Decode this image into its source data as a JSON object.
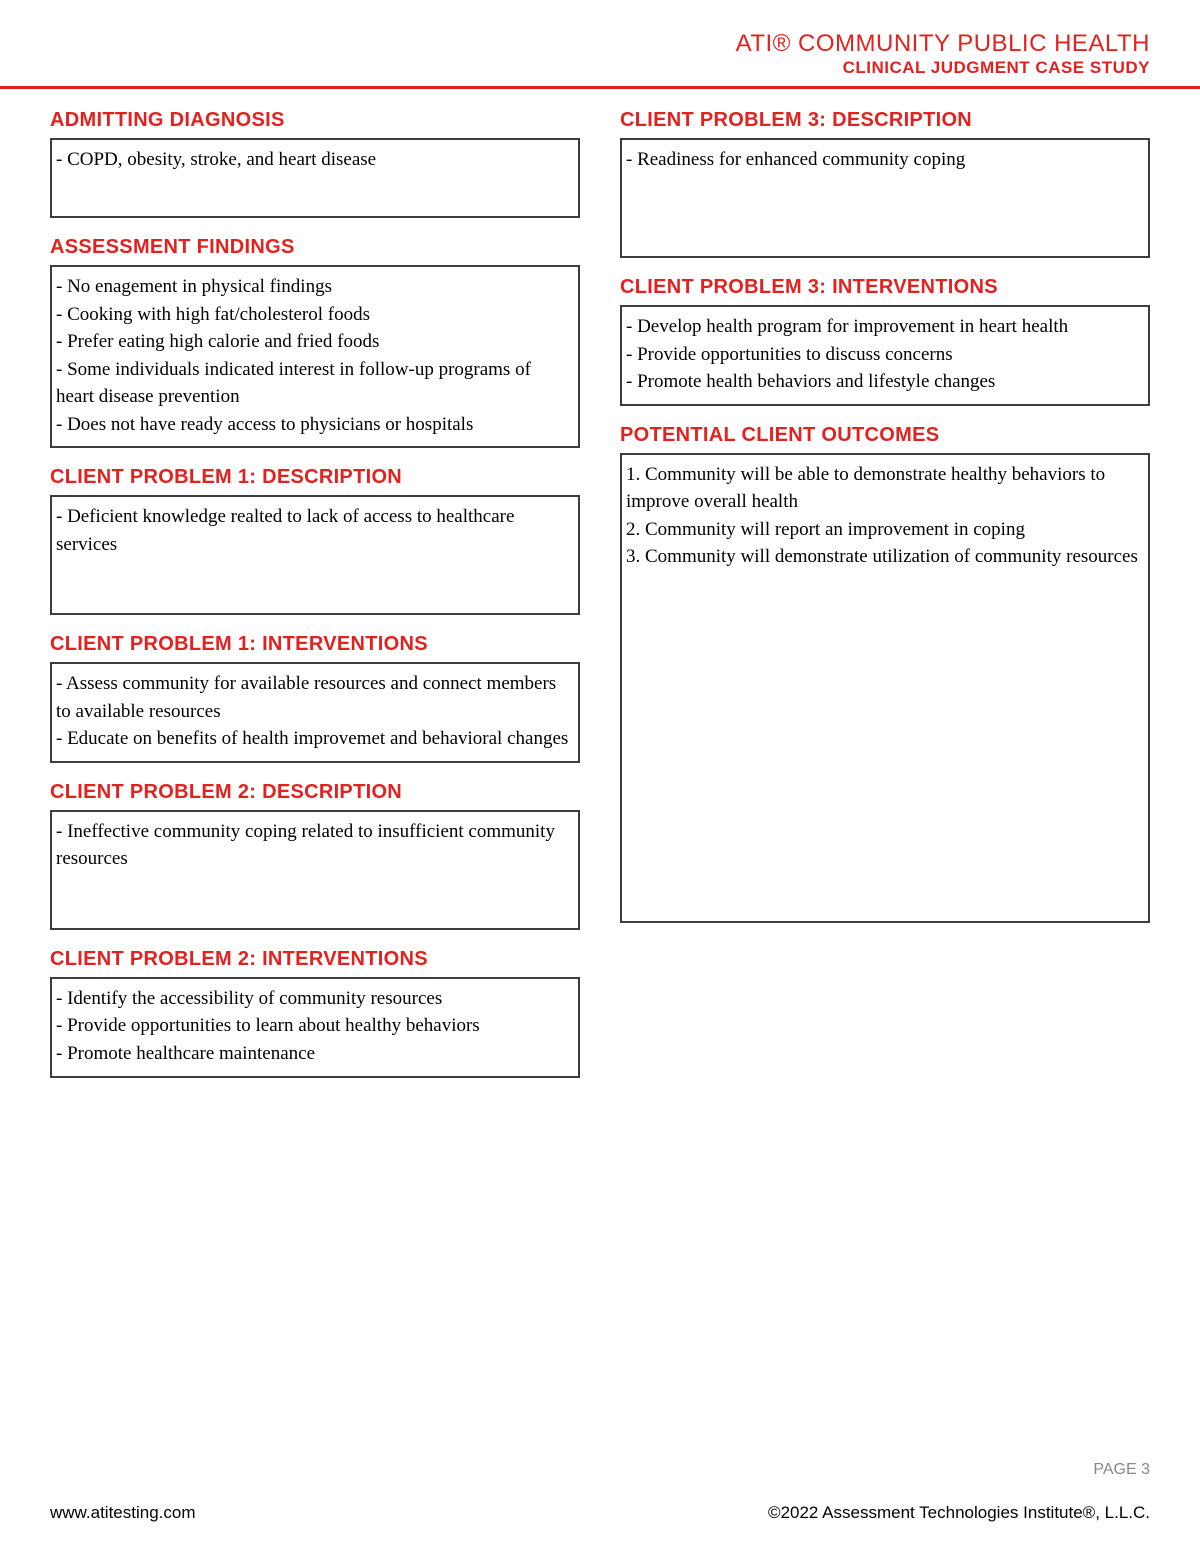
{
  "colors": {
    "accent": "#e2221f",
    "border": "#3d3d3d",
    "text": "#000000",
    "muted": "#888888",
    "background": "#ffffff"
  },
  "header": {
    "title": "ATI® COMMUNITY PUBLIC HEALTH",
    "subtitle": "CLINICAL JUDGMENT CASE STUDY"
  },
  "left": {
    "admitting_diagnosis": {
      "heading": "ADMITTING DIAGNOSIS",
      "lines": [
        "- COPD, obesity, stroke, and heart disease"
      ]
    },
    "assessment_findings": {
      "heading": "ASSESSMENT FINDINGS",
      "lines": [
        "- No enagement in physical findings",
        "- Cooking with high fat/cholesterol foods",
        "- Prefer eating high calorie and fried foods",
        "- Some individuals indicated interest in follow-up programs of heart disease prevention",
        "- Does not have ready access to physicians or hospitals"
      ]
    },
    "problem1_desc": {
      "heading": "CLIENT PROBLEM 1: DESCRIPTION",
      "lines": [
        "- Deficient knowledge realted to lack of access to healthcare services"
      ]
    },
    "problem1_int": {
      "heading": "CLIENT PROBLEM 1: INTERVENTIONS",
      "lines": [
        "- Assess community for available resources and connect members to available resources",
        "- Educate on benefits of health improvemet and behavioral changes"
      ]
    },
    "problem2_desc": {
      "heading": "CLIENT PROBLEM 2: DESCRIPTION",
      "lines": [
        "- Ineffective community coping related to insufficient community resources"
      ]
    },
    "problem2_int": {
      "heading": "CLIENT PROBLEM 2: INTERVENTIONS",
      "lines": [
        "- Identify the accessibility of community resources",
        "- Provide opportunities to learn about healthy behaviors",
        "- Promote healthcare maintenance"
      ]
    }
  },
  "right": {
    "problem3_desc": {
      "heading": "CLIENT PROBLEM 3: DESCRIPTION",
      "lines": [
        "- Readiness for enhanced community coping"
      ]
    },
    "problem3_int": {
      "heading": "CLIENT PROBLEM 3: INTERVENTIONS",
      "lines": [
        "- Develop health program for improvement in heart health",
        "- Provide opportunities to discuss concerns",
        "- Promote health behaviors and lifestyle changes"
      ]
    },
    "outcomes": {
      "heading": "POTENTIAL CLIENT OUTCOMES",
      "lines": [
        "1. Community will be able to demonstrate healthy behaviors to improve overall health",
        "2. Community will report an improvement in coping",
        "3. Community will demonstrate utilization of community resources"
      ]
    }
  },
  "footer": {
    "page": "PAGE 3",
    "left": "www.atitesting.com",
    "right": "©2022 Assessment Technologies Institute®, L.L.C."
  }
}
